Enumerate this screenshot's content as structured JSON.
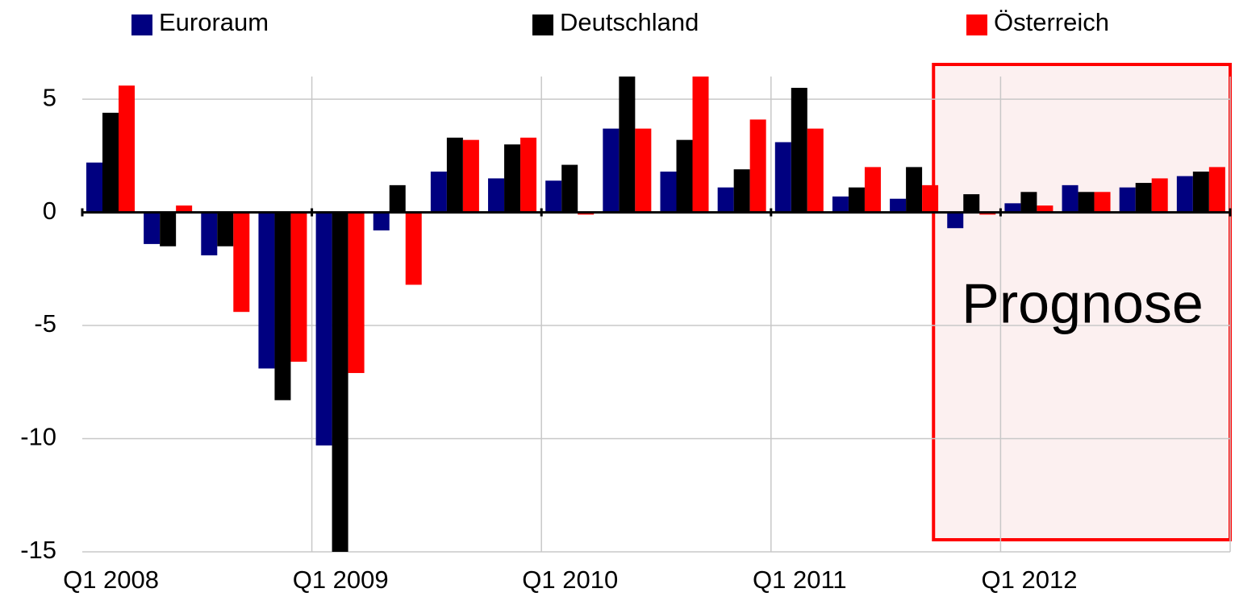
{
  "chart_data": {
    "type": "bar",
    "categories": [
      "Q1 2008",
      null,
      null,
      null,
      "Q1 2009",
      null,
      null,
      null,
      "Q1 2010",
      null,
      null,
      null,
      "Q1 2011",
      null,
      null,
      null,
      "Q1 2012",
      null,
      null,
      null
    ],
    "series": [
      {
        "name": "Euroraum",
        "color": "#000080",
        "values": [
          2.2,
          -1.4,
          -1.9,
          -6.9,
          -10.3,
          -0.8,
          1.8,
          1.5,
          1.4,
          3.7,
          1.8,
          1.1,
          3.1,
          0.7,
          0.6,
          -0.7,
          0.4,
          1.2,
          1.1,
          1.6
        ]
      },
      {
        "name": "Deutschland",
        "color": "#000000",
        "values": [
          4.4,
          -1.5,
          -1.5,
          -8.3,
          -15,
          1.2,
          3.3,
          3.0,
          2.1,
          6.0,
          3.2,
          1.9,
          5.5,
          1.1,
          2.0,
          0.8,
          0.9,
          0.9,
          1.3,
          1.8
        ]
      },
      {
        "name": "Österreich",
        "color": "#ff0000",
        "values": [
          5.6,
          0.3,
          -4.4,
          -6.6,
          -7.1,
          -3.2,
          3.2,
          3.3,
          -0.1,
          3.7,
          6.0,
          4.1,
          3.7,
          2.0,
          1.2,
          -0.1,
          0.3,
          0.9,
          1.5,
          2.0
        ]
      }
    ],
    "ylim": [
      -15,
      6
    ],
    "yticks": [
      -15,
      -10,
      -5,
      0,
      5
    ],
    "grid": true,
    "annotations": [
      {
        "text": "Prognose"
      }
    ]
  }
}
